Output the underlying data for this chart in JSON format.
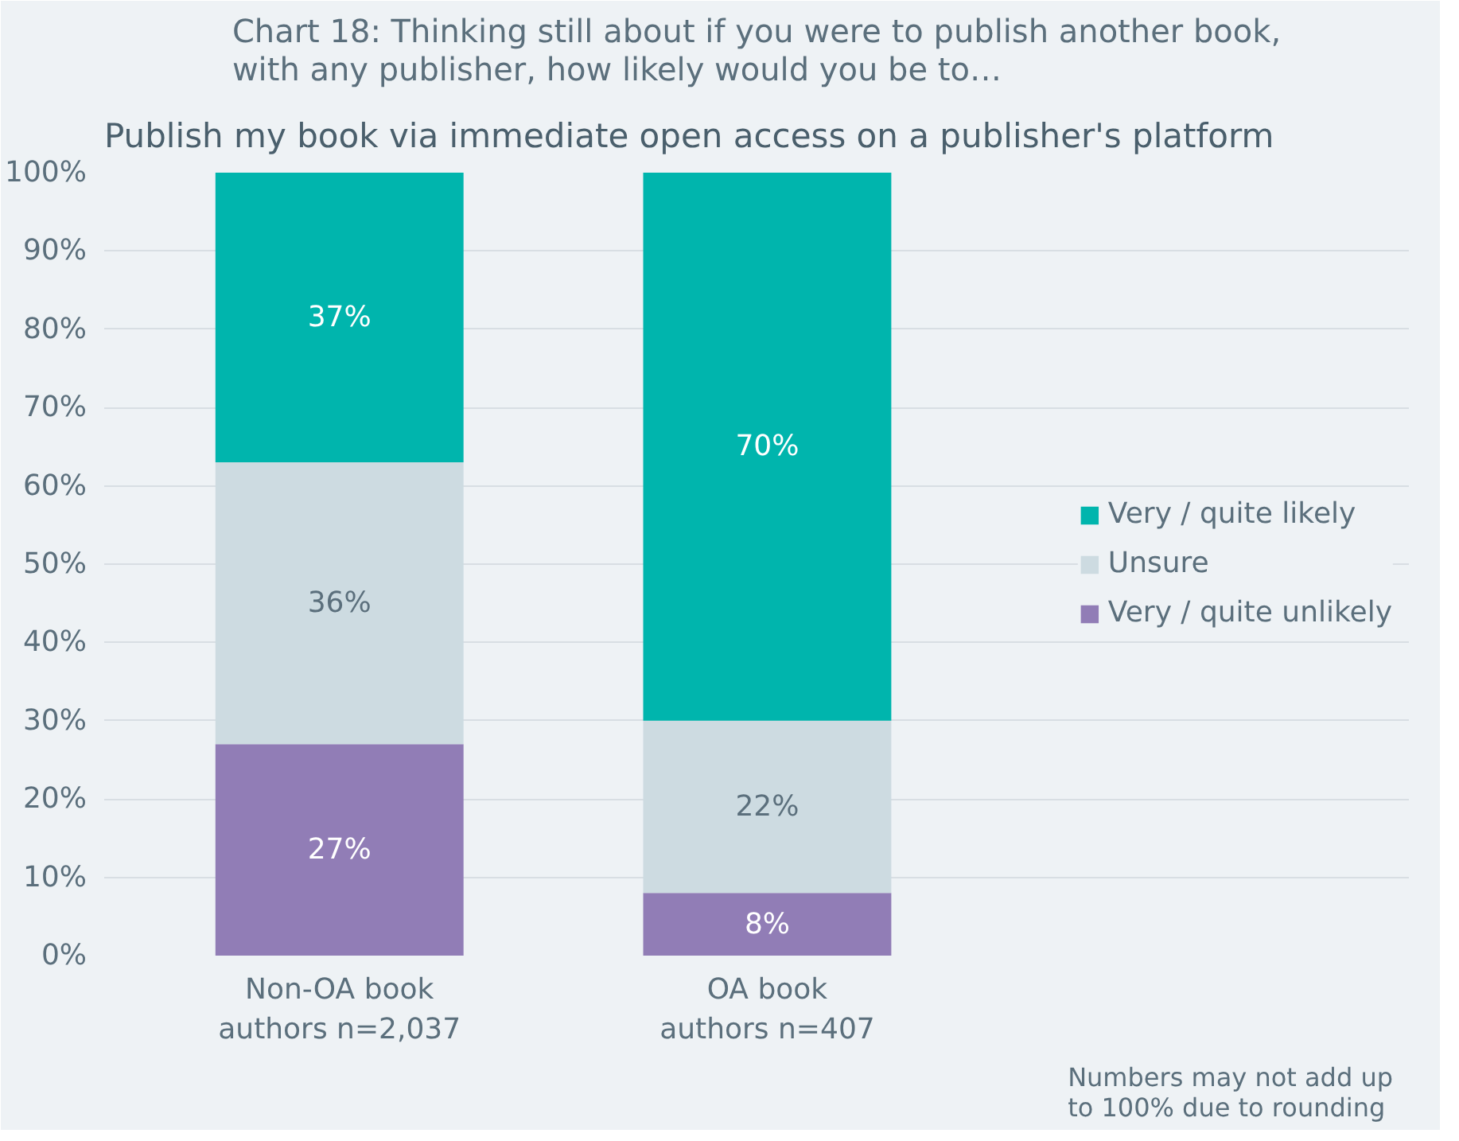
{
  "chart_data": {
    "type": "bar",
    "stacked": true,
    "title": "Chart 18: Thinking still about if you were to publish another book,\nwith any publisher, how likely would you be to…",
    "subtitle": "Publish my book via immediate open access on a publisher's platform",
    "categories": [
      "Non-OA book\nauthors n=2,037",
      "OA book\nauthors n=407"
    ],
    "series": [
      {
        "name": "Very / quite unlikely",
        "color": "#917db6",
        "values": [
          27,
          8
        ]
      },
      {
        "name": "Unsure",
        "color": "#cddbe1",
        "values": [
          36,
          22
        ]
      },
      {
        "name": "Very / quite likely",
        "color": "#00b5ad",
        "values": [
          37,
          70
        ]
      }
    ],
    "ylim": [
      0,
      100
    ],
    "yticks": [
      {
        "value": 0,
        "label": "0%"
      },
      {
        "value": 10,
        "label": "10%"
      },
      {
        "value": 20,
        "label": "20%"
      },
      {
        "value": 30,
        "label": "30%"
      },
      {
        "value": 40,
        "label": "40%"
      },
      {
        "value": 50,
        "label": "50%"
      },
      {
        "value": 60,
        "label": "60%"
      },
      {
        "value": 70,
        "label": "70%"
      },
      {
        "value": 80,
        "label": "80%"
      },
      {
        "value": 90,
        "label": "90%"
      },
      {
        "value": 100,
        "label": "100%"
      }
    ],
    "value_labels": [
      [
        "27%",
        "8%"
      ],
      [
        "36%",
        "22%"
      ],
      [
        "37%",
        "70%"
      ]
    ],
    "grid": "y",
    "legend": "right",
    "annotations": [
      "Numbers may not add up\nto 100% due to rounding"
    ]
  }
}
